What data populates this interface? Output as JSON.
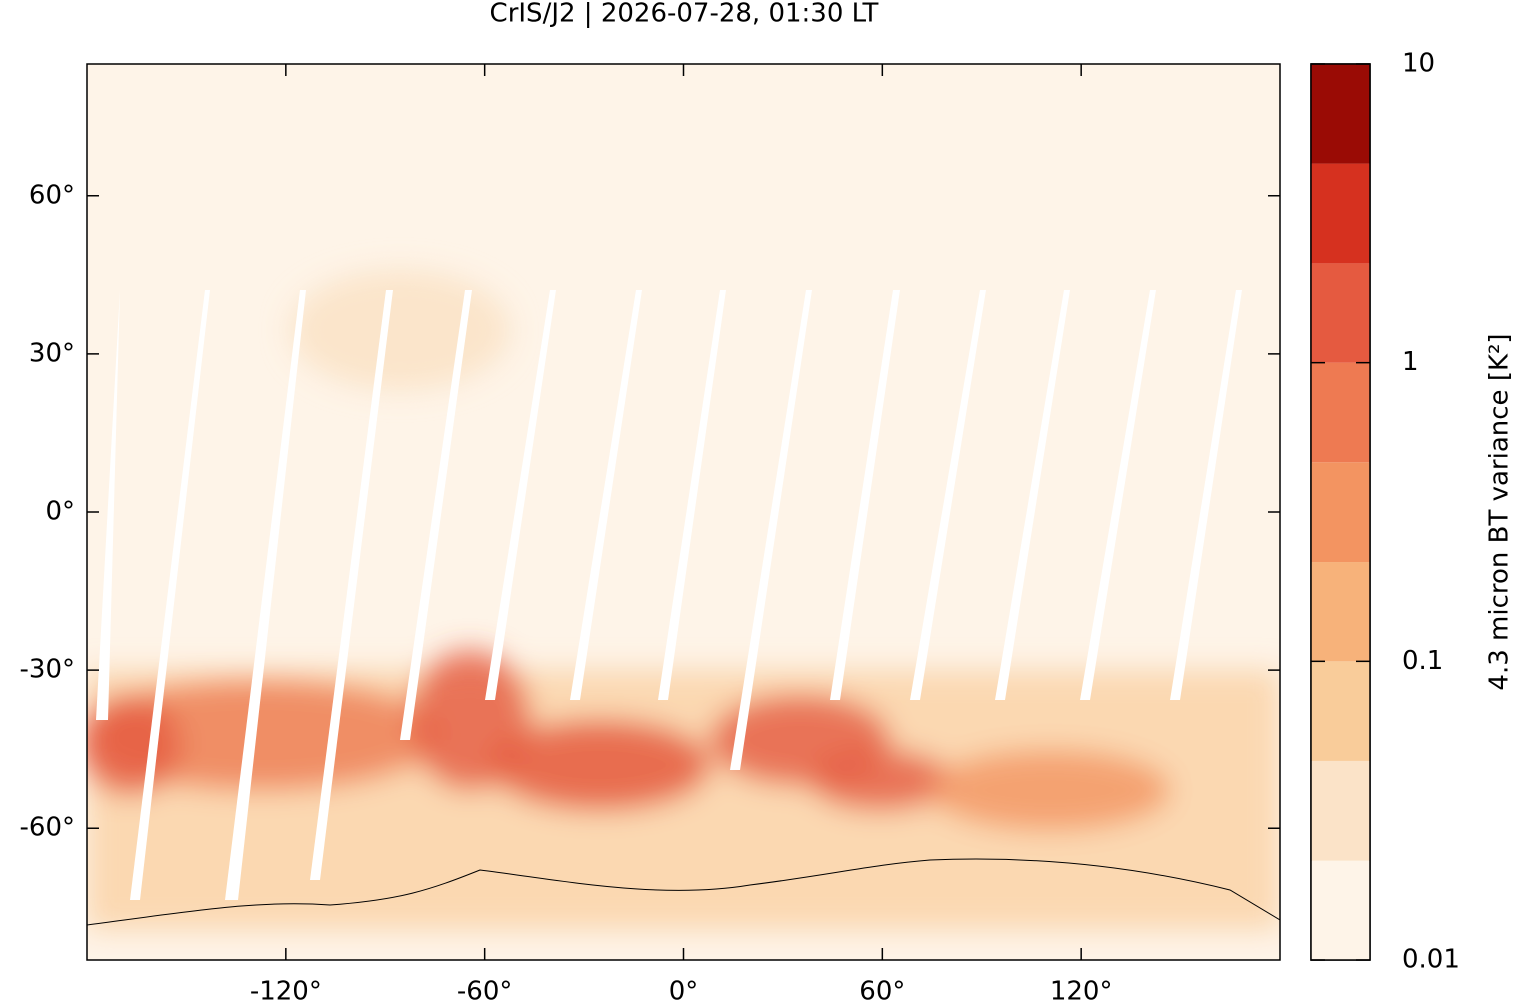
{
  "chart_data": {
    "type": "map",
    "title": "CrIS/J2 | 2026-07-28, 01:30 LT",
    "xlim": [
      -180,
      180
    ],
    "ylim": [
      -85,
      85
    ],
    "xticks": [
      {
        "value": -120,
        "label": "-120°"
      },
      {
        "value": -60,
        "label": "-60°"
      },
      {
        "value": 0,
        "label": "0°"
      },
      {
        "value": 60,
        "label": "60°"
      },
      {
        "value": 120,
        "label": "120°"
      }
    ],
    "yticks": [
      {
        "value": 60,
        "label": "60°"
      },
      {
        "value": 30,
        "label": "30°"
      },
      {
        "value": 0,
        "label": "0°"
      },
      {
        "value": -30,
        "label": "-30°"
      },
      {
        "value": -60,
        "label": "-60°"
      }
    ],
    "colorbar": {
      "label": "4.3 micron BT variance [K²]",
      "scale": "log",
      "lim": [
        0.01,
        10
      ],
      "ticks": [
        0.01,
        0.1,
        1,
        10
      ],
      "levels": [
        0.01,
        0.0215,
        0.0464,
        0.1,
        0.215,
        0.464,
        1,
        2.15,
        4.64,
        10
      ],
      "colors": [
        "#fef4e8",
        "#fbe3c8",
        "#f9cc9a",
        "#f7b27a",
        "#f39461",
        "#ee7a52",
        "#e55a40",
        "#d6311f",
        "#9a0b05"
      ]
    }
  }
}
